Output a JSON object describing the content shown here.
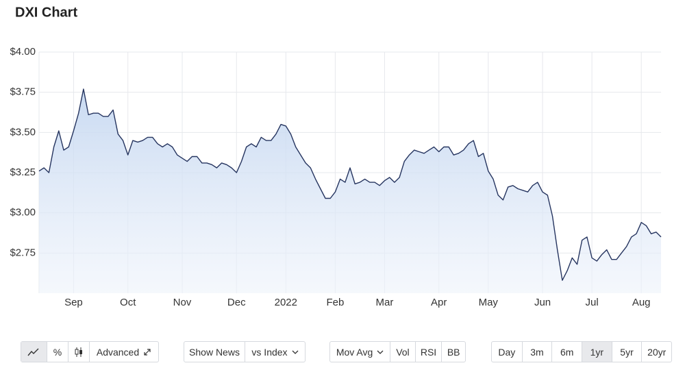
{
  "chart_data": {
    "type": "line",
    "title": "DXI Chart",
    "categories": [
      null,
      null,
      null,
      null,
      null,
      null,
      null,
      "Sep",
      null,
      null,
      null,
      null,
      null,
      null,
      null,
      null,
      null,
      null,
      "Oct",
      null,
      null,
      null,
      null,
      null,
      null,
      null,
      null,
      null,
      null,
      "Nov",
      null,
      null,
      null,
      null,
      null,
      null,
      null,
      null,
      null,
      null,
      "Dec",
      null,
      null,
      null,
      null,
      null,
      null,
      null,
      null,
      null,
      "2022",
      null,
      null,
      null,
      null,
      null,
      null,
      null,
      null,
      null,
      "Feb",
      null,
      null,
      null,
      null,
      null,
      null,
      null,
      null,
      null,
      "Mar",
      null,
      null,
      null,
      null,
      null,
      null,
      null,
      null,
      null,
      null,
      "Apr",
      null,
      null,
      null,
      null,
      null,
      null,
      null,
      null,
      null,
      "May",
      null,
      null,
      null,
      null,
      null,
      null,
      null,
      null,
      null,
      null,
      "Jun",
      null,
      null,
      null,
      null,
      null,
      null,
      null,
      null,
      null,
      "Jul",
      null,
      null,
      null,
      null,
      null,
      null,
      null,
      null,
      null,
      "Aug",
      null,
      null,
      null,
      null
    ],
    "values": [
      3.26,
      3.28,
      3.25,
      3.41,
      3.51,
      3.39,
      3.41,
      3.51,
      3.62,
      3.77,
      3.61,
      3.62,
      3.62,
      3.6,
      3.6,
      3.64,
      3.49,
      3.45,
      3.36,
      3.45,
      3.44,
      3.45,
      3.47,
      3.47,
      3.43,
      3.41,
      3.43,
      3.41,
      3.36,
      3.34,
      3.32,
      3.35,
      3.35,
      3.31,
      3.31,
      3.3,
      3.28,
      3.31,
      3.3,
      3.28,
      3.25,
      3.32,
      3.41,
      3.43,
      3.41,
      3.47,
      3.45,
      3.45,
      3.49,
      3.55,
      3.54,
      3.49,
      3.41,
      3.36,
      3.31,
      3.28,
      3.21,
      3.15,
      3.09,
      3.09,
      3.13,
      3.21,
      3.19,
      3.28,
      3.18,
      3.19,
      3.21,
      3.19,
      3.19,
      3.17,
      3.2,
      3.22,
      3.19,
      3.22,
      3.32,
      3.36,
      3.39,
      3.38,
      3.37,
      3.39,
      3.41,
      3.38,
      3.41,
      3.41,
      3.36,
      3.37,
      3.39,
      3.43,
      3.45,
      3.35,
      3.37,
      3.26,
      3.21,
      3.11,
      3.08,
      3.16,
      3.17,
      3.15,
      3.14,
      3.13,
      3.17,
      3.19,
      3.13,
      3.11,
      2.98,
      2.77,
      2.58,
      2.64,
      2.72,
      2.68,
      2.83,
      2.85,
      2.72,
      2.7,
      2.74,
      2.77,
      2.71,
      2.71,
      2.75,
      2.79,
      2.85,
      2.87,
      2.94,
      2.92,
      2.87,
      2.88,
      2.85
    ],
    "color": "#25345f",
    "ylim": [
      2.5,
      4.0
    ],
    "yticks": [
      {
        "value": 2.75,
        "label": "$2.75"
      },
      {
        "value": 3.0,
        "label": "$3.00"
      },
      {
        "value": 3.25,
        "label": "$3.25"
      },
      {
        "value": 3.5,
        "label": "$3.50"
      },
      {
        "value": 3.75,
        "label": "$3.75"
      },
      {
        "value": 4.0,
        "label": "$4.00"
      }
    ],
    "grid": true
  },
  "toolbar": {
    "percent": "%",
    "advanced": "Advanced",
    "show_news": "Show News",
    "vs_index": "vs Index",
    "mov_avg": "Mov Avg",
    "vol": "Vol",
    "rsi": "RSI",
    "bb": "BB",
    "ranges": [
      "Day",
      "3m",
      "6m",
      "1yr",
      "5yr",
      "20yr"
    ],
    "active_range": "1yr"
  }
}
